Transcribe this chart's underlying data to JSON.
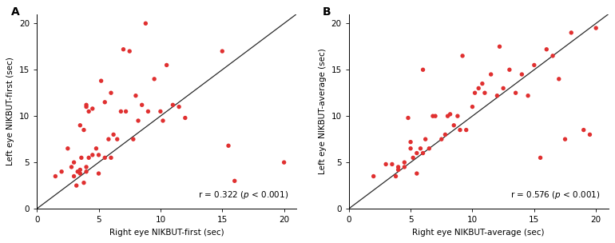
{
  "panel_A": {
    "label": "A",
    "x": [
      1.5,
      2.0,
      2.5,
      2.8,
      3.0,
      3.0,
      3.2,
      3.3,
      3.5,
      3.5,
      3.5,
      3.6,
      3.8,
      3.8,
      4.0,
      4.0,
      4.0,
      4.0,
      4.2,
      4.2,
      4.5,
      4.5,
      4.8,
      5.0,
      5.0,
      5.2,
      5.5,
      5.5,
      5.8,
      6.0,
      6.0,
      6.2,
      6.5,
      6.8,
      7.0,
      7.2,
      7.5,
      7.8,
      8.0,
      8.2,
      8.5,
      8.8,
      9.0,
      9.5,
      10.0,
      10.2,
      10.5,
      11.0,
      11.5,
      12.0,
      15.0,
      15.5,
      16.0,
      20.0
    ],
    "y": [
      3.5,
      4.0,
      6.5,
      4.5,
      3.5,
      5.0,
      2.5,
      4.0,
      3.8,
      4.2,
      9.0,
      5.5,
      2.8,
      8.5,
      4.0,
      4.5,
      11.0,
      11.2,
      5.5,
      10.5,
      5.8,
      10.8,
      6.5,
      3.8,
      5.8,
      13.8,
      5.5,
      11.5,
      7.5,
      5.5,
      12.5,
      8.0,
      7.5,
      10.5,
      17.2,
      10.5,
      17.0,
      7.5,
      12.2,
      9.5,
      11.2,
      20.0,
      10.5,
      14.0,
      10.5,
      9.5,
      15.5,
      11.2,
      11.0,
      9.8,
      17.0,
      6.8,
      3.0,
      5.0
    ],
    "xlabel": "Right eye NIKBUT-first (sec)",
    "ylabel": "Left eye NIKBUT-first (sec)",
    "annot_r": "r = 0.322 (",
    "annot_p": "p",
    "annot_rest": " < 0.001)",
    "xlim": [
      0,
      21
    ],
    "ylim": [
      0,
      21
    ],
    "xticks": [
      0,
      5,
      10,
      15,
      20
    ],
    "yticks": [
      0,
      5,
      10,
      15,
      20
    ]
  },
  "panel_B": {
    "label": "B",
    "x": [
      2.0,
      3.0,
      3.5,
      3.8,
      4.0,
      4.0,
      4.5,
      4.5,
      4.8,
      5.0,
      5.0,
      5.2,
      5.5,
      5.5,
      5.8,
      6.0,
      6.0,
      6.2,
      6.5,
      6.8,
      7.0,
      7.5,
      7.8,
      8.0,
      8.2,
      8.5,
      8.8,
      9.0,
      9.2,
      9.5,
      10.0,
      10.2,
      10.5,
      10.8,
      11.0,
      11.5,
      12.0,
      12.2,
      12.5,
      13.0,
      13.5,
      14.0,
      14.5,
      15.0,
      15.5,
      16.0,
      16.5,
      17.0,
      17.5,
      18.0,
      19.0,
      19.5,
      20.0
    ],
    "y": [
      3.5,
      4.8,
      4.8,
      3.5,
      4.5,
      4.2,
      5.0,
      4.5,
      9.8,
      6.5,
      7.2,
      5.5,
      3.8,
      6.0,
      6.5,
      6.0,
      15.0,
      7.5,
      6.5,
      10.0,
      10.0,
      7.5,
      8.0,
      10.0,
      10.2,
      9.0,
      10.0,
      8.5,
      16.5,
      8.5,
      11.0,
      12.5,
      13.0,
      13.5,
      12.5,
      14.5,
      12.2,
      17.5,
      13.0,
      15.0,
      12.5,
      14.5,
      12.2,
      15.5,
      5.5,
      17.2,
      16.5,
      14.0,
      7.5,
      19.0,
      8.5,
      8.0,
      19.5
    ],
    "xlabel": "Right eye NIKBUT-average (sec)",
    "ylabel": "Left eye NIKBUT-average (sec)",
    "annot_r": "r = 0.576 (",
    "annot_p": "p",
    "annot_rest": " < 0.001)",
    "xlim": [
      0,
      21
    ],
    "ylim": [
      0,
      21
    ],
    "xticks": [
      0,
      5,
      10,
      15,
      20
    ],
    "yticks": [
      0,
      5,
      10,
      15,
      20
    ]
  },
  "dot_color": "#e03030",
  "dot_size": 15,
  "line_color": "#2a2a2a",
  "background_color": "#ffffff",
  "font_size_label": 7.5,
  "font_size_annotation": 7.5,
  "font_size_tick": 7.5,
  "font_size_panel": 10
}
